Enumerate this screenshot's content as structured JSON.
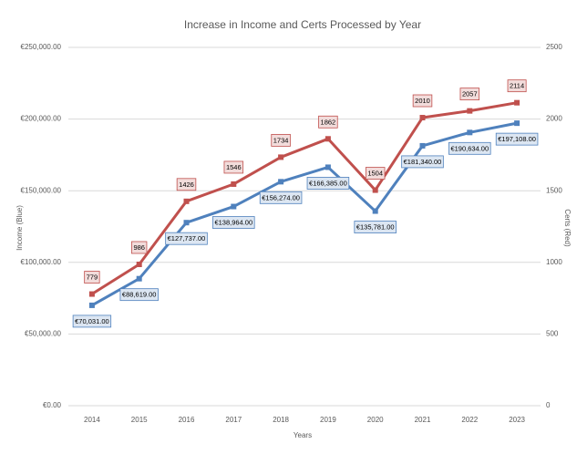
{
  "chart_data": {
    "type": "line",
    "title": "Increase in Income and Certs Processed by Year",
    "xlabel": "Years",
    "ylabel": "Income (Blue)",
    "y2label": "Certs (Red)",
    "categories": [
      "2014",
      "2015",
      "2016",
      "2017",
      "2018",
      "2019",
      "2020",
      "2021",
      "2022",
      "2023"
    ],
    "series": [
      {
        "color": "#4f81bd",
        "axis": "y",
        "values": [
          70031,
          88619,
          127737,
          138964,
          156274,
          166385,
          135781,
          181340,
          190634,
          197108
        ],
        "value_labels": [
          "€70,031.00",
          "€88,619.00",
          "€127,737.00",
          "€138,964.00",
          "€156,274.00",
          "€166,385.00",
          "€135,781.00",
          "€181,340.00",
          "€190,634.00",
          "€197,108.00"
        ]
      },
      {
        "color": "#c0504d",
        "axis": "y2",
        "values": [
          779,
          986,
          1426,
          1546,
          1734,
          1862,
          1504,
          2010,
          2057,
          2114
        ]
      }
    ],
    "ylim": [
      0,
      250000
    ],
    "yticks": [
      {
        "value": 0,
        "label": "€0.00"
      },
      {
        "value": 50000,
        "label": "€50,000.00"
      },
      {
        "value": 100000,
        "label": "€100,000.00"
      },
      {
        "value": 150000,
        "label": "€150,000.00"
      },
      {
        "value": 200000,
        "label": "€200,000.00"
      },
      {
        "value": 250000,
        "label": "€250,000.00"
      }
    ],
    "y2lim": [
      0,
      2500
    ],
    "y2ticks": [
      0,
      500,
      1000,
      1500,
      2000,
      2500
    ],
    "grid": true
  }
}
